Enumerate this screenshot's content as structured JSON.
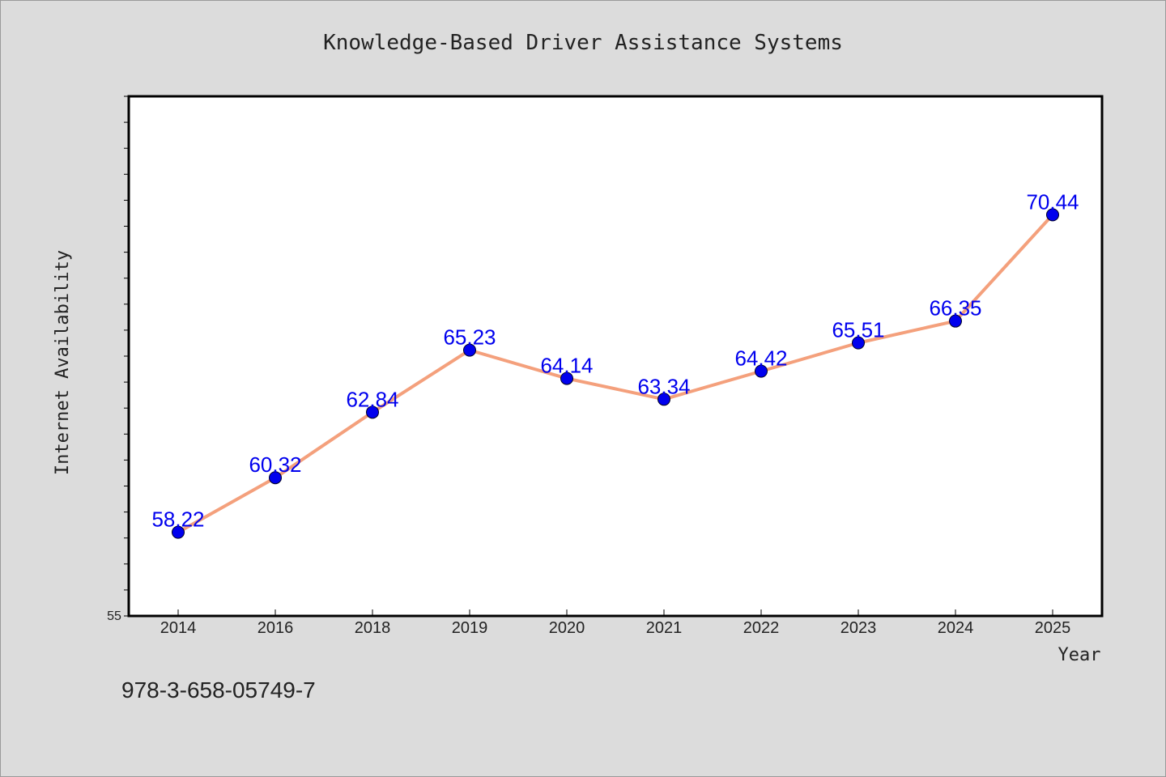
{
  "chart_data": {
    "type": "line",
    "title": "Knowledge-Based Driver Assistance Systems",
    "xlabel": "Year",
    "ylabel": "Internet Availability",
    "categories": [
      "2014",
      "2016",
      "2018",
      "2019",
      "2020",
      "2021",
      "2022",
      "2023",
      "2024",
      "2025"
    ],
    "series": [
      {
        "values": [
          58.22,
          60.32,
          62.84,
          65.23,
          64.14,
          63.34,
          64.42,
          65.51,
          66.35,
          70.44
        ],
        "labels": [
          "58.22",
          "60.32",
          "62.84",
          "65.23",
          "64.14",
          "63.34",
          "64.42",
          "65.51",
          "66.35",
          "70.44"
        ]
      }
    ],
    "y_tick_labels": [
      "55"
    ],
    "ylim": [
      55,
      75
    ],
    "grid": false,
    "colors": {
      "line": "#f4a07c",
      "marker": "#0000ee",
      "label": "#0000ee",
      "background": "#dcdcdc",
      "plot_bg": "#ffffff"
    }
  },
  "footer": {
    "isbn": "978-3-658-05749-7"
  }
}
